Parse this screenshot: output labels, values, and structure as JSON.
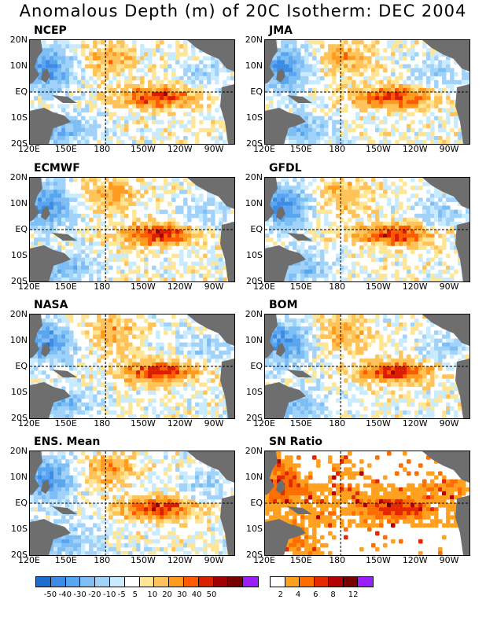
{
  "title": "Anomalous Depth (m) of 20C Isotherm: DEC 2004",
  "lat_labels": [
    "20N",
    "10N",
    "EQ",
    "10S",
    "20S"
  ],
  "lon_labels": [
    "120E",
    "150E",
    "180",
    "150W",
    "120W",
    "90W"
  ],
  "panels": [
    {
      "name": "NCEP",
      "style": "anom"
    },
    {
      "name": "JMA",
      "style": "anom"
    },
    {
      "name": "ECMWF",
      "style": "anom"
    },
    {
      "name": "GFDL",
      "style": "anom"
    },
    {
      "name": "NASA",
      "style": "anom"
    },
    {
      "name": "BOM",
      "style": "anom"
    },
    {
      "name": "ENS. Mean",
      "style": "anom"
    },
    {
      "name": "SN Ratio",
      "style": "ratio"
    }
  ],
  "colorbar_anom": {
    "labels": [
      "-50",
      "-40",
      "-30",
      "-20",
      "-10",
      "-5",
      "5",
      "10",
      "20",
      "30",
      "40",
      "50"
    ],
    "colors": [
      "#1e6ed2",
      "#3c8ce6",
      "#5aa5f0",
      "#7dbef5",
      "#a0d2fa",
      "#c8ebff",
      "#ffffff",
      "#ffe696",
      "#ffc35a",
      "#ff9b1e",
      "#ff5a00",
      "#dc1e00",
      "#a00000",
      "#780000",
      "#9b1eff"
    ]
  },
  "colorbar_ratio": {
    "labels": [
      "2",
      "4",
      "6",
      "8",
      "12"
    ],
    "colors": [
      "#ffffff",
      "#ffa01e",
      "#ff6e00",
      "#e62800",
      "#b40000",
      "#780000",
      "#9b1eff"
    ]
  }
}
